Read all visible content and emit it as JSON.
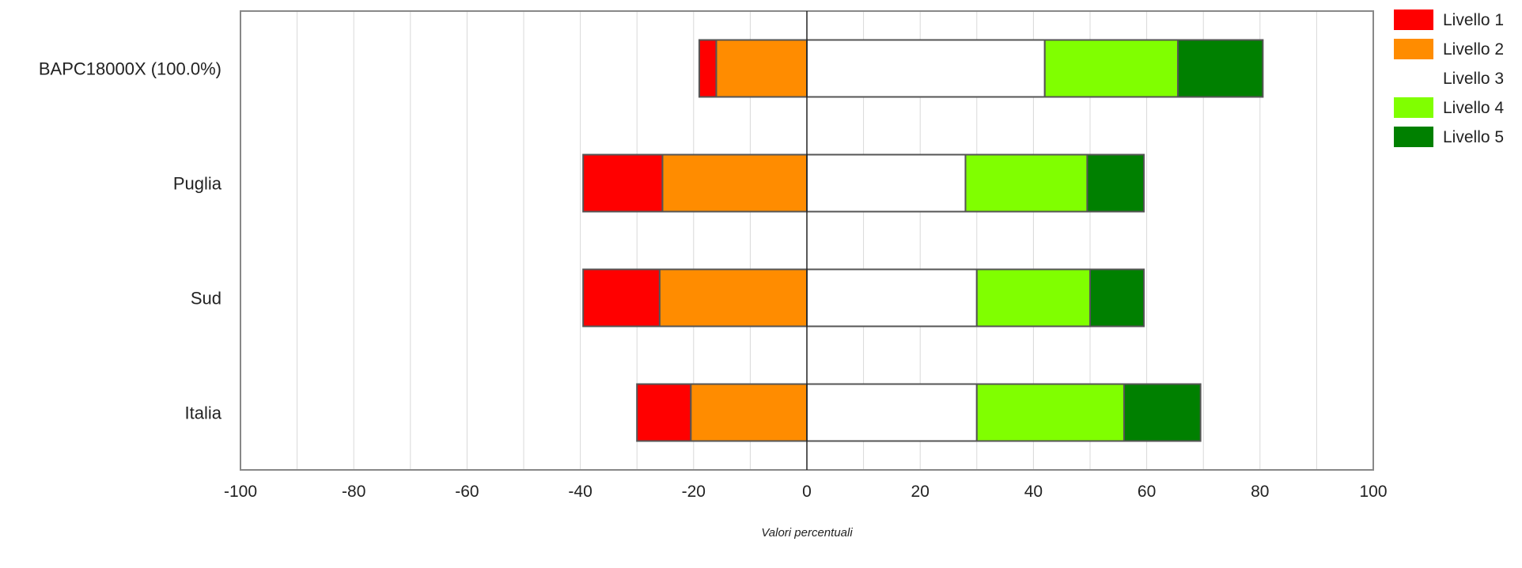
{
  "chart_data": {
    "type": "bar",
    "orientation": "horizontal",
    "stacked": "diverging",
    "categories": [
      "BAPC18000X (100.0%)",
      "Puglia",
      "Sud",
      "Italia"
    ],
    "series": [
      {
        "name": "Livello 1",
        "color": "#ff0000",
        "values": [
          3.0,
          14.0,
          13.5,
          9.5
        ]
      },
      {
        "name": "Livello 2",
        "color": "#ff8c00",
        "values": [
          16.0,
          25.5,
          26.0,
          20.5
        ]
      },
      {
        "name": "Livello 3",
        "color": "#ffffff",
        "values": [
          42.0,
          28.0,
          30.0,
          30.0
        ]
      },
      {
        "name": "Livello 4",
        "color": "#80ff00",
        "values": [
          23.5,
          21.5,
          20.0,
          26.0
        ]
      },
      {
        "name": "Livello 5",
        "color": "#008000",
        "values": [
          15.0,
          10.0,
          9.5,
          13.5
        ]
      }
    ],
    "negative_series": [
      "Livello 1",
      "Livello 2"
    ],
    "x_ticks": [
      "-100",
      "-80",
      "-60",
      "-40",
      "-20",
      "0",
      "20",
      "40",
      "60",
      "80",
      "100"
    ],
    "xlim": [
      -100,
      100
    ],
    "xlabel": "Valori percentuali",
    "ylabel": "",
    "title": "",
    "grid": true,
    "legend_position": "top-right"
  }
}
